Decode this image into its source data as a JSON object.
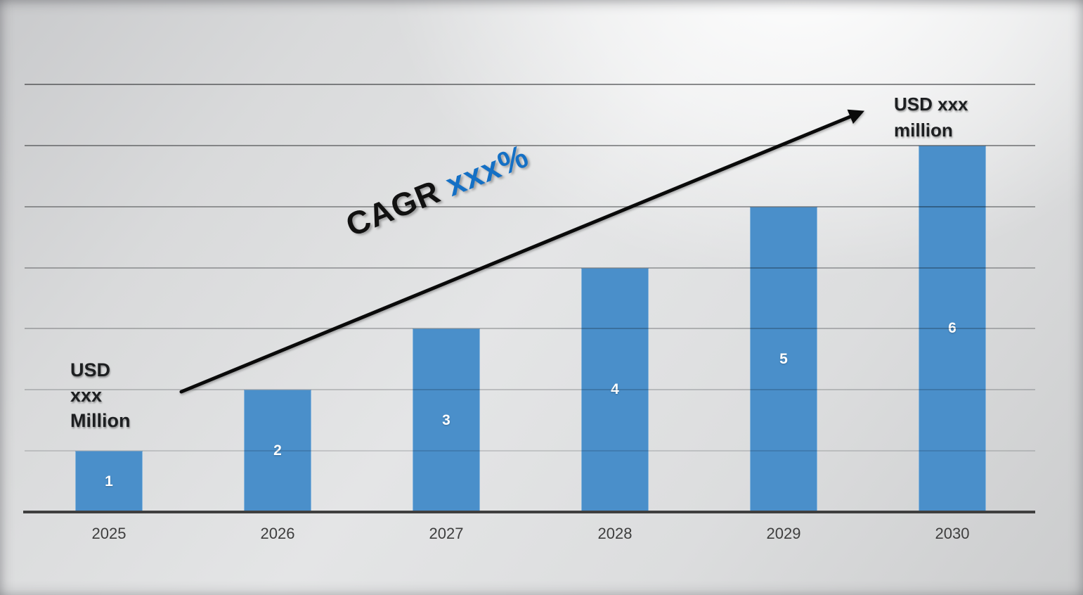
{
  "chart_data": {
    "type": "bar",
    "title": "",
    "categories": [
      "2025",
      "2026",
      "2027",
      "2028",
      "2029",
      "2030"
    ],
    "values": [
      1,
      2,
      3,
      4,
      5,
      6
    ],
    "bar_labels": [
      "1",
      "2",
      "3",
      "4",
      "5",
      "6"
    ],
    "ylim": [
      0,
      7
    ],
    "gridline_values": [
      1,
      2,
      3,
      4,
      5,
      6,
      7
    ],
    "grid": "horizontal-only",
    "legend": "none",
    "annotations": {
      "start_value": {
        "text": "USD\nxxx\nMillion"
      },
      "cagr": {
        "prefix": "CAGR ",
        "value": "xxx%"
      },
      "end_value": {
        "text": "USD xxx\nmillion"
      },
      "trend_arrow": {
        "direction": "up-right",
        "from": "above 2025 bar",
        "to": "left of end value label"
      }
    }
  },
  "colors": {
    "bar": "#4A8FCA",
    "bar_label": "#FFFFFF",
    "axis_line": "#3F3F3F",
    "tick_label": "#3E3E3E",
    "cagr_text": "#111111",
    "cagr_value": "#1470C5",
    "annotation_text": "#1D1F21",
    "arrow": "#0A0A0A",
    "background_light": "#FBFBFC",
    "background_dark": "#C9CACC",
    "gridline_colors": [
      "#8F9091",
      "#9B9C9D",
      "#A9AAAB",
      "#B8B9BA",
      "#C6C7C8",
      "#D3D4D5",
      "#DCDDDE"
    ]
  }
}
